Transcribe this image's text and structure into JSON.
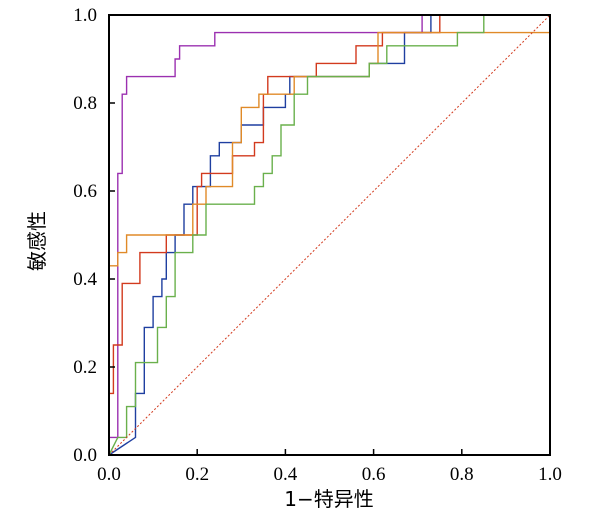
{
  "chart_data": {
    "type": "line",
    "xlabel": "1−特异性",
    "ylabel": "敏感性",
    "xlim": [
      0,
      1
    ],
    "ylim": [
      0,
      1
    ],
    "x_ticks": [
      "0.0",
      "0.2",
      "0.4",
      "0.6",
      "0.8",
      "1.0"
    ],
    "y_ticks": [
      "0.0",
      "0.2",
      "0.4",
      "0.6",
      "0.8",
      "1.0"
    ],
    "grid": false,
    "legend": "none",
    "series": [
      {
        "color": "#9b30b0",
        "points": [
          [
            0,
            0
          ],
          [
            0,
            0.04
          ],
          [
            0.02,
            0.04
          ],
          [
            0.02,
            0.64
          ],
          [
            0.03,
            0.64
          ],
          [
            0.03,
            0.82
          ],
          [
            0.04,
            0.82
          ],
          [
            0.04,
            0.86
          ],
          [
            0.15,
            0.86
          ],
          [
            0.15,
            0.9
          ],
          [
            0.16,
            0.9
          ],
          [
            0.16,
            0.93
          ],
          [
            0.24,
            0.93
          ],
          [
            0.24,
            0.96
          ],
          [
            0.71,
            0.96
          ],
          [
            0.71,
            1.0
          ],
          [
            1.0,
            1.0
          ]
        ]
      },
      {
        "color": "#1f3fa0",
        "points": [
          [
            0,
            0
          ],
          [
            0.06,
            0.04
          ],
          [
            0.06,
            0.14
          ],
          [
            0.08,
            0.14
          ],
          [
            0.08,
            0.29
          ],
          [
            0.1,
            0.29
          ],
          [
            0.1,
            0.36
          ],
          [
            0.12,
            0.36
          ],
          [
            0.12,
            0.4
          ],
          [
            0.13,
            0.4
          ],
          [
            0.13,
            0.46
          ],
          [
            0.15,
            0.46
          ],
          [
            0.15,
            0.5
          ],
          [
            0.17,
            0.5
          ],
          [
            0.17,
            0.57
          ],
          [
            0.19,
            0.57
          ],
          [
            0.19,
            0.61
          ],
          [
            0.23,
            0.61
          ],
          [
            0.23,
            0.68
          ],
          [
            0.25,
            0.68
          ],
          [
            0.25,
            0.71
          ],
          [
            0.3,
            0.71
          ],
          [
            0.3,
            0.75
          ],
          [
            0.35,
            0.75
          ],
          [
            0.35,
            0.79
          ],
          [
            0.4,
            0.79
          ],
          [
            0.4,
            0.82
          ],
          [
            0.41,
            0.82
          ],
          [
            0.41,
            0.86
          ],
          [
            0.59,
            0.86
          ],
          [
            0.59,
            0.89
          ],
          [
            0.67,
            0.89
          ],
          [
            0.67,
            0.96
          ],
          [
            0.73,
            0.96
          ],
          [
            0.73,
            1.0
          ],
          [
            1.0,
            1.0
          ]
        ]
      },
      {
        "color": "#d23a1e",
        "points": [
          [
            0,
            0
          ],
          [
            0,
            0.14
          ],
          [
            0.01,
            0.14
          ],
          [
            0.01,
            0.25
          ],
          [
            0.03,
            0.25
          ],
          [
            0.03,
            0.39
          ],
          [
            0.07,
            0.39
          ],
          [
            0.07,
            0.46
          ],
          [
            0.13,
            0.46
          ],
          [
            0.13,
            0.5
          ],
          [
            0.2,
            0.5
          ],
          [
            0.2,
            0.61
          ],
          [
            0.21,
            0.61
          ],
          [
            0.21,
            0.64
          ],
          [
            0.28,
            0.64
          ],
          [
            0.28,
            0.68
          ],
          [
            0.33,
            0.68
          ],
          [
            0.33,
            0.71
          ],
          [
            0.35,
            0.71
          ],
          [
            0.35,
            0.82
          ],
          [
            0.36,
            0.82
          ],
          [
            0.36,
            0.86
          ],
          [
            0.47,
            0.86
          ],
          [
            0.47,
            0.89
          ],
          [
            0.56,
            0.89
          ],
          [
            0.56,
            0.93
          ],
          [
            0.62,
            0.93
          ],
          [
            0.62,
            0.96
          ],
          [
            0.75,
            0.96
          ],
          [
            0.75,
            1.0
          ],
          [
            1.0,
            1.0
          ]
        ]
      },
      {
        "color": "#e08a28",
        "points": [
          [
            0,
            0
          ],
          [
            0,
            0.43
          ],
          [
            0.02,
            0.43
          ],
          [
            0.02,
            0.46
          ],
          [
            0.04,
            0.46
          ],
          [
            0.04,
            0.5
          ],
          [
            0.19,
            0.5
          ],
          [
            0.19,
            0.57
          ],
          [
            0.22,
            0.57
          ],
          [
            0.22,
            0.61
          ],
          [
            0.28,
            0.61
          ],
          [
            0.28,
            0.71
          ],
          [
            0.3,
            0.71
          ],
          [
            0.3,
            0.79
          ],
          [
            0.34,
            0.79
          ],
          [
            0.34,
            0.82
          ],
          [
            0.42,
            0.82
          ],
          [
            0.42,
            0.86
          ],
          [
            0.59,
            0.86
          ],
          [
            0.59,
            0.89
          ],
          [
            0.61,
            0.89
          ],
          [
            0.61,
            0.96
          ],
          [
            1.0,
            0.96
          ],
          [
            1.0,
            1.0
          ]
        ]
      },
      {
        "color": "#6ab04c",
        "points": [
          [
            0,
            0
          ],
          [
            0.02,
            0.04
          ],
          [
            0.04,
            0.04
          ],
          [
            0.04,
            0.11
          ],
          [
            0.06,
            0.11
          ],
          [
            0.06,
            0.21
          ],
          [
            0.11,
            0.21
          ],
          [
            0.11,
            0.29
          ],
          [
            0.13,
            0.29
          ],
          [
            0.13,
            0.36
          ],
          [
            0.15,
            0.36
          ],
          [
            0.15,
            0.46
          ],
          [
            0.19,
            0.46
          ],
          [
            0.19,
            0.5
          ],
          [
            0.22,
            0.5
          ],
          [
            0.22,
            0.57
          ],
          [
            0.33,
            0.57
          ],
          [
            0.33,
            0.61
          ],
          [
            0.35,
            0.61
          ],
          [
            0.35,
            0.64
          ],
          [
            0.37,
            0.64
          ],
          [
            0.37,
            0.68
          ],
          [
            0.39,
            0.68
          ],
          [
            0.39,
            0.75
          ],
          [
            0.42,
            0.75
          ],
          [
            0.42,
            0.82
          ],
          [
            0.45,
            0.82
          ],
          [
            0.45,
            0.86
          ],
          [
            0.59,
            0.86
          ],
          [
            0.59,
            0.89
          ],
          [
            0.63,
            0.89
          ],
          [
            0.63,
            0.93
          ],
          [
            0.79,
            0.93
          ],
          [
            0.79,
            0.96
          ],
          [
            0.85,
            0.96
          ],
          [
            0.85,
            1.0
          ],
          [
            1.0,
            1.0
          ]
        ]
      },
      {
        "color": "#d23a1e",
        "dashed": true,
        "points": [
          [
            0,
            0
          ],
          [
            1,
            1
          ]
        ]
      }
    ]
  }
}
